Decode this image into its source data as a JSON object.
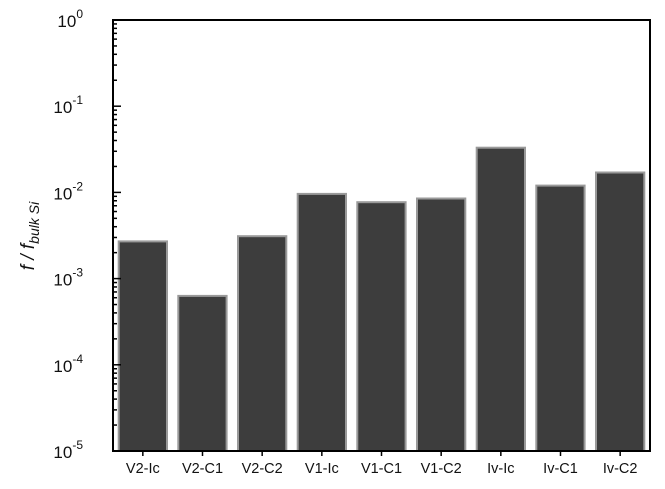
{
  "chart_data": {
    "type": "bar",
    "categories": [
      "V2-Ic",
      "V2-C1",
      "V2-C2",
      "V1-Ic",
      "V1-C1",
      "V1-C2",
      "Iv-Ic",
      "Iv-C1",
      "Iv-C2"
    ],
    "values": [
      0.0027,
      0.00063,
      0.0031,
      0.0096,
      0.0077,
      0.0085,
      0.033,
      0.012,
      0.017
    ],
    "title": "",
    "xlabel": "",
    "ylabel": "f / f",
    "ylabel_subscript": "bulk Si",
    "yscale": "log",
    "ylim": [
      1e-05,
      1
    ],
    "ytick_base": "10",
    "ytick_exponents": [
      "-5",
      "-4",
      "-3",
      "-2",
      "-1",
      "0"
    ],
    "grid": false,
    "legend": "none",
    "colors": {
      "bar_fill": "#3d3d3d",
      "bar_edge": "#9a9a9a",
      "axis": "#000000"
    }
  }
}
